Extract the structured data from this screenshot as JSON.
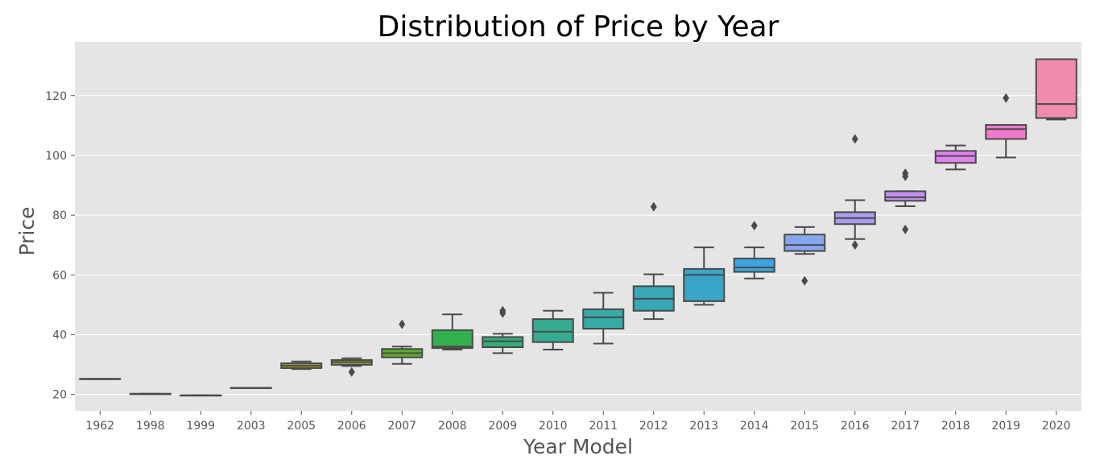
{
  "chart_data": {
    "type": "box",
    "title": "Distribution of Price by Year",
    "xlabel": "Year Model",
    "ylabel": "Price",
    "ylim": [
      14.5,
      138
    ],
    "yticks": [
      20,
      40,
      60,
      80,
      100,
      120
    ],
    "grid": true,
    "background": "#e5e5e5",
    "box_edge_color": "#4a4a4a",
    "categories": [
      "1962",
      "1998",
      "1999",
      "2003",
      "2005",
      "2006",
      "2007",
      "2008",
      "2009",
      "2010",
      "2011",
      "2012",
      "2013",
      "2014",
      "2015",
      "2016",
      "2017",
      "2018",
      "2019",
      "2020"
    ],
    "boxes": [
      {
        "category": "1962",
        "whislo": 25.2,
        "q1": 25.2,
        "med": 25.2,
        "q3": 25.2,
        "whishi": 25.2,
        "fliers": [],
        "color": "#f77189"
      },
      {
        "category": "1998",
        "whislo": 20.2,
        "q1": 20.2,
        "med": 20.2,
        "q3": 20.2,
        "whishi": 20.2,
        "fliers": [],
        "color": "#f37932"
      },
      {
        "category": "1999",
        "whislo": 19.7,
        "q1": 19.7,
        "med": 19.7,
        "q3": 19.7,
        "whishi": 19.7,
        "fliers": [],
        "color": "#cf8a31"
      },
      {
        "category": "2003",
        "whislo": 22.2,
        "q1": 22.2,
        "med": 22.2,
        "q3": 22.2,
        "whishi": 22.2,
        "fliers": [],
        "color": "#b69732"
      },
      {
        "category": "2005",
        "whislo": 28.5,
        "q1": 28.8,
        "med": 29.6,
        "q3": 30.4,
        "whishi": 31.0,
        "fliers": [],
        "color": "#a19f31"
      },
      {
        "category": "2006",
        "whislo": 29.5,
        "q1": 29.9,
        "med": 30.8,
        "q3": 31.5,
        "whishi": 32.1,
        "fliers": [
          27.5
        ],
        "color": "#88a831"
      },
      {
        "category": "2007",
        "whislo": 30.2,
        "q1": 32.4,
        "med": 33.8,
        "q3": 35.2,
        "whishi": 36.0,
        "fliers": [
          43.5
        ],
        "color": "#5aae31"
      },
      {
        "category": "2008",
        "whislo": 35.0,
        "q1": 35.5,
        "med": 36.0,
        "q3": 41.5,
        "whishi": 46.8,
        "fliers": [],
        "color": "#33b04e"
      },
      {
        "category": "2009",
        "whislo": 33.8,
        "q1": 35.8,
        "med": 37.8,
        "q3": 39.2,
        "whishi": 40.3,
        "fliers": [
          47.2,
          48.0
        ],
        "color": "#34ae79"
      },
      {
        "category": "2010",
        "whislo": 35.0,
        "q1": 37.5,
        "med": 41.0,
        "q3": 45.2,
        "whishi": 48.0,
        "fliers": [],
        "color": "#35ac92"
      },
      {
        "category": "2011",
        "whislo": 37.0,
        "q1": 42.0,
        "med": 45.8,
        "q3": 48.5,
        "whishi": 54.0,
        "fliers": [],
        "color": "#36aaa4"
      },
      {
        "category": "2012",
        "whislo": 45.2,
        "q1": 48.0,
        "med": 52.0,
        "q3": 56.2,
        "whishi": 60.2,
        "fliers": [
          82.8
        ],
        "color": "#37a8b5"
      },
      {
        "category": "2013",
        "whislo": 50.0,
        "q1": 51.2,
        "med": 60.0,
        "q3": 62.0,
        "whishi": 69.2,
        "fliers": [],
        "color": "#39a6c7"
      },
      {
        "category": "2014",
        "whislo": 58.8,
        "q1": 61.0,
        "med": 62.5,
        "q3": 65.5,
        "whishi": 69.2,
        "fliers": [
          76.5
        ],
        "color": "#3ba3e0"
      },
      {
        "category": "2015",
        "whislo": 67.0,
        "q1": 68.0,
        "med": 70.0,
        "q3": 73.5,
        "whishi": 76.0,
        "fliers": [
          58.0
        ],
        "color": "#87a6ee"
      },
      {
        "category": "2016",
        "whislo": 72.0,
        "q1": 77.0,
        "med": 79.0,
        "q3": 81.0,
        "whishi": 85.0,
        "fliers": [
          70.0,
          105.5
        ],
        "color": "#aa9cf0"
      },
      {
        "category": "2017",
        "whislo": 83.0,
        "q1": 84.8,
        "med": 86.0,
        "q3": 88.0,
        "whishi": 88.0,
        "fliers": [
          75.2,
          93.0,
          94.0
        ],
        "color": "#c491f2"
      },
      {
        "category": "2018",
        "whislo": 95.3,
        "q1": 97.5,
        "med": 99.8,
        "q3": 101.5,
        "whishi": 103.3,
        "fliers": [],
        "color": "#e184f3"
      },
      {
        "category": "2019",
        "whislo": 99.3,
        "q1": 105.5,
        "med": 108.8,
        "q3": 110.2,
        "whishi": 110.2,
        "fliers": [
          119.2
        ],
        "color": "#f07ac9"
      },
      {
        "category": "2020",
        "whislo": 112.0,
        "q1": 112.5,
        "med": 117.2,
        "q3": 132.2,
        "whishi": 132.2,
        "fliers": [],
        "color": "#f28caf"
      }
    ]
  }
}
